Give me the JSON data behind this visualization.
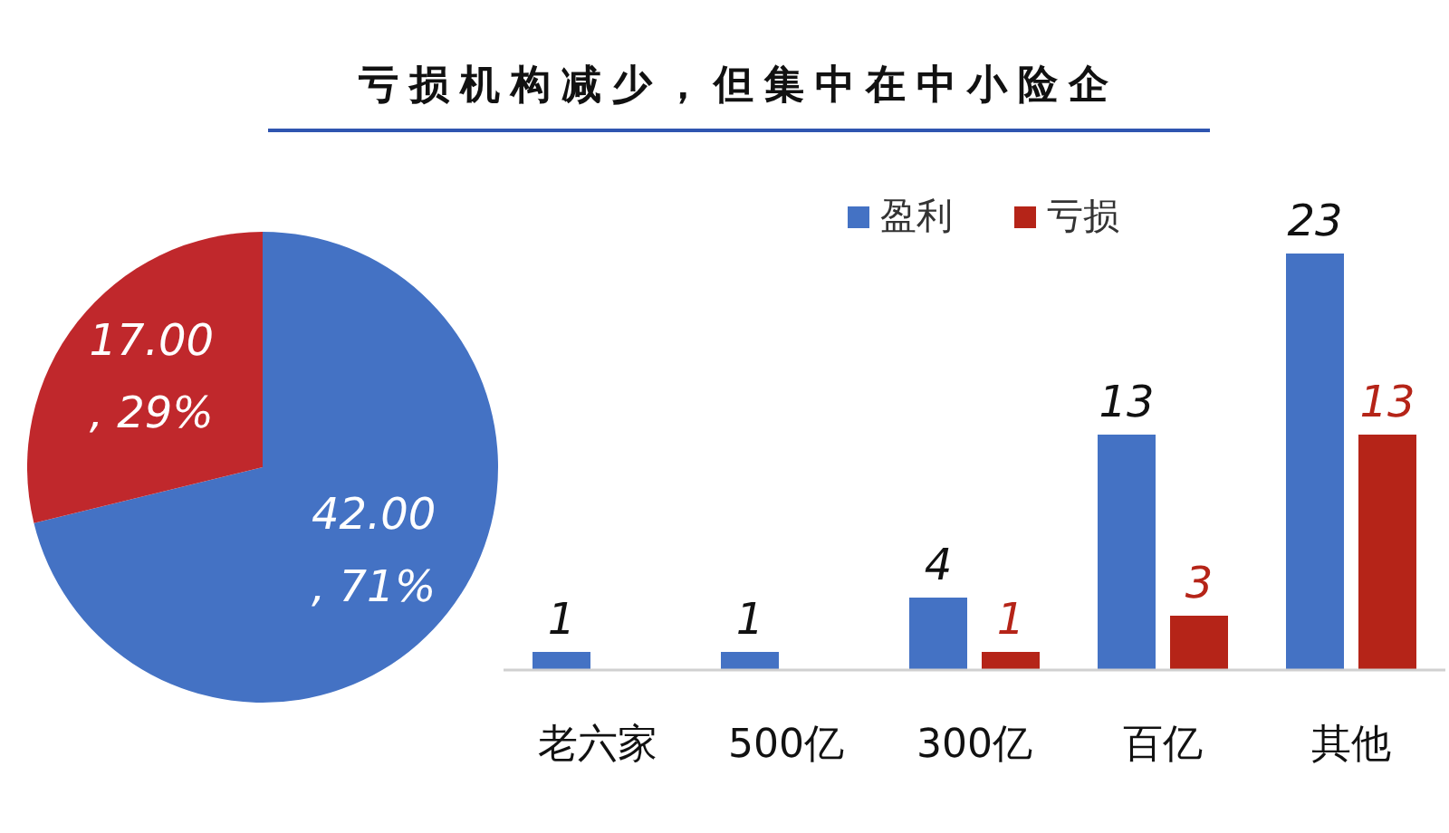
{
  "chart_data": [
    {
      "type": "pie",
      "title": "亏损机构减少，但集中在中小险企",
      "categories": [
        null,
        null
      ],
      "values": [
        42,
        17
      ],
      "colors": [
        "#4472c4",
        "#c0282c"
      ],
      "value_labels": [
        "42.00\n, 71%",
        "17.00\n, 29%"
      ]
    },
    {
      "type": "bar",
      "categories": [
        "老六家",
        "500亿",
        "300亿",
        "百亿",
        "其他"
      ],
      "series": [
        {
          "name": "盈利",
          "color": "#4472c4",
          "values": [
            1,
            1,
            4,
            13,
            23
          ]
        },
        {
          "name": "亏损",
          "color": "#b52418",
          "values": [
            null,
            null,
            1,
            3,
            13
          ]
        }
      ],
      "data_labels": true,
      "legend": "top"
    }
  ]
}
